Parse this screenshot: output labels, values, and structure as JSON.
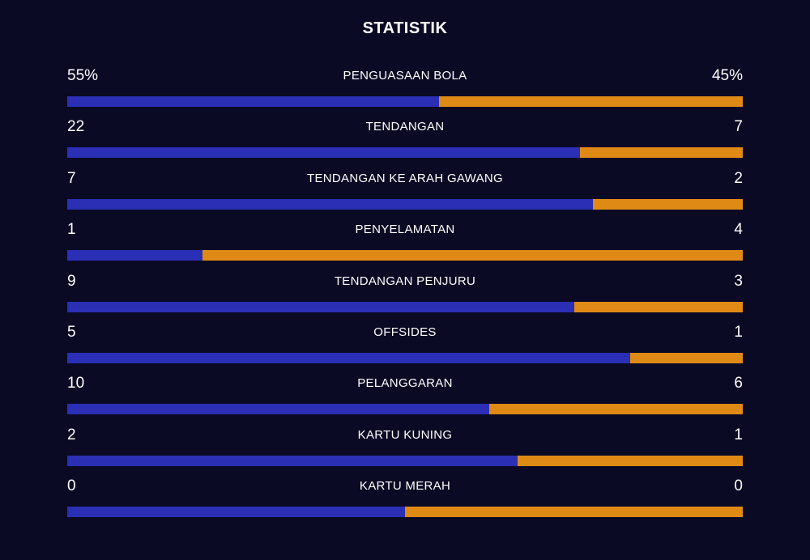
{
  "title": "STATISTIK",
  "colors": {
    "background": "#0a0a24",
    "home_bar": "#2a2fb5",
    "away_bar": "#e08a16",
    "text": "#ffffff"
  },
  "stats": [
    {
      "label": "PENGUASAAN BOLA",
      "home": "55%",
      "away": "45%",
      "home_share": 0.55
    },
    {
      "label": "TENDANGAN",
      "home": "22",
      "away": "7",
      "home_share": 0.759
    },
    {
      "label": "TENDANGAN KE ARAH GAWANG",
      "home": "7",
      "away": "2",
      "home_share": 0.778
    },
    {
      "label": "PENYELAMATAN",
      "home": "1",
      "away": "4",
      "home_share": 0.2
    },
    {
      "label": "TENDANGAN PENJURU",
      "home": "9",
      "away": "3",
      "home_share": 0.75
    },
    {
      "label": "OFFSIDES",
      "home": "5",
      "away": "1",
      "home_share": 0.833
    },
    {
      "label": "PELANGGARAN",
      "home": "10",
      "away": "6",
      "home_share": 0.625
    },
    {
      "label": "KARTU KUNING",
      "home": "2",
      "away": "1",
      "home_share": 0.667
    },
    {
      "label": "KARTU MERAH",
      "home": "0",
      "away": "0",
      "home_share": 0.5
    }
  ]
}
